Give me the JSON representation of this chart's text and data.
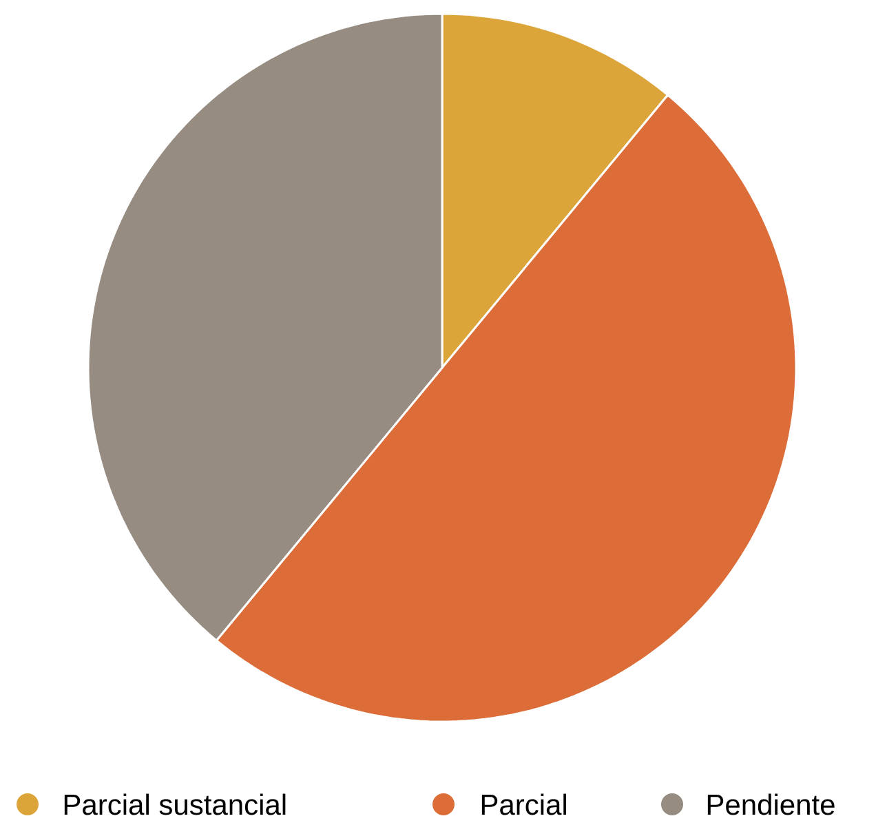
{
  "chart_data": {
    "type": "pie",
    "categories": [
      "Parcial sustancial",
      "Parcial",
      "Pendiente"
    ],
    "values": [
      11,
      50,
      39
    ],
    "colors": [
      "#dca53a",
      "#dc6c38",
      "#968c82"
    ],
    "legend": "bottom"
  }
}
